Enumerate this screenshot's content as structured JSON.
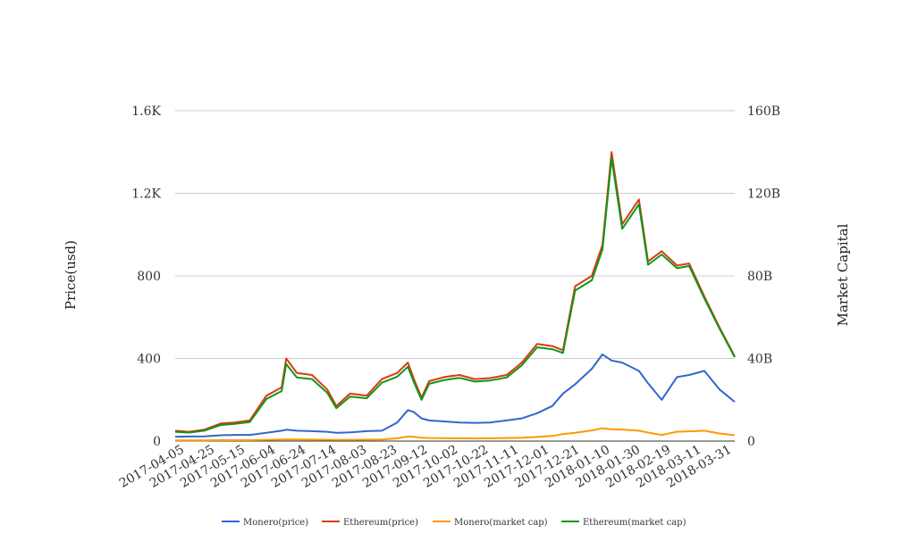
{
  "chart_data": {
    "type": "line",
    "title": "",
    "ylabel_left": "Price(usd)",
    "ylabel_right": "Market Capital",
    "y_left_ticks": [
      "0",
      "400",
      "800",
      "1.2K",
      "1.6K"
    ],
    "y_right_ticks": [
      "0",
      "40B",
      "80B",
      "120B",
      "160B"
    ],
    "ylim_left": [
      0,
      1600
    ],
    "ylim_right": [
      0,
      160000000000
    ],
    "grid": true,
    "legend_position": "bottom",
    "x_tick_labels": [
      "2017-04-05",
      "2017-04-25",
      "2017-05-15",
      "2017-06-04",
      "2017-06-24",
      "2017-07-14",
      "2017-08-03",
      "2017-08-23",
      "2017-09-12",
      "2017-10-02",
      "2017-10-22",
      "2017-11-11",
      "2017-12-01",
      "2017-12-21",
      "2018-01-10",
      "2018-01-30",
      "2018-02-19",
      "2018-03-11",
      "2018-03-31"
    ],
    "x": [
      "2017-04-01",
      "2017-04-10",
      "2017-04-20",
      "2017-05-01",
      "2017-05-10",
      "2017-05-20",
      "2017-05-31",
      "2017-06-10",
      "2017-06-13",
      "2017-06-20",
      "2017-06-30",
      "2017-07-10",
      "2017-07-16",
      "2017-07-25",
      "2017-08-05",
      "2017-08-15",
      "2017-08-25",
      "2017-09-01",
      "2017-09-05",
      "2017-09-10",
      "2017-09-15",
      "2017-09-25",
      "2017-10-05",
      "2017-10-15",
      "2017-10-25",
      "2017-11-05",
      "2017-11-15",
      "2017-11-25",
      "2017-12-05",
      "2017-12-12",
      "2017-12-20",
      "2017-12-31",
      "2018-01-07",
      "2018-01-13",
      "2018-01-20",
      "2018-01-31",
      "2018-02-06",
      "2018-02-15",
      "2018-02-25",
      "2018-03-05",
      "2018-03-15",
      "2018-03-25",
      "2018-04-04"
    ],
    "series": [
      {
        "name": "Monero(price)",
        "axis": "left",
        "color": "#3366cc",
        "values": [
          21,
          22,
          23,
          28,
          30,
          30,
          40,
          50,
          55,
          50,
          48,
          45,
          40,
          42,
          48,
          50,
          90,
          150,
          140,
          110,
          100,
          95,
          90,
          88,
          90,
          100,
          110,
          135,
          170,
          230,
          275,
          350,
          420,
          390,
          380,
          340,
          280,
          200,
          310,
          320,
          340,
          250,
          190
        ]
      },
      {
        "name": "Ethereum(price)",
        "axis": "left",
        "color": "#dc3912",
        "values": [
          50,
          45,
          55,
          85,
          90,
          100,
          220,
          260,
          400,
          330,
          320,
          250,
          170,
          230,
          220,
          300,
          330,
          380,
          300,
          210,
          290,
          310,
          320,
          300,
          305,
          320,
          380,
          470,
          460,
          440,
          750,
          800,
          950,
          1400,
          1050,
          1170,
          870,
          920,
          850,
          860,
          700,
          550,
          410
        ]
      },
      {
        "name": "Monero(market cap)",
        "axis": "right",
        "color": "#ff9900",
        "values": [
          300000000,
          320000000,
          340000000,
          420000000,
          440000000,
          440000000,
          590000000,
          730000000,
          800000000,
          730000000,
          700000000,
          660000000,
          590000000,
          610000000,
          700000000,
          730000000,
          1320000000,
          2200000000,
          2050000000,
          1610000000,
          1470000000,
          1390000000,
          1320000000,
          1290000000,
          1320000000,
          1470000000,
          1610000000,
          1980000000,
          2500000000,
          3380000000,
          4040000000,
          5150000000,
          6180000000,
          5740000000,
          5590000000,
          5000000000,
          4120000000,
          2940000000,
          4560000000,
          4710000000,
          5000000000,
          3680000000,
          2790000000
        ]
      },
      {
        "name": "Ethereum(market cap)",
        "axis": "right",
        "color": "#109618",
        "values": [
          4500000000,
          4100000000,
          5000000000,
          7800000000,
          8300000000,
          9200000000,
          20400000000,
          24200000000,
          37300000000,
          30800000000,
          30000000000,
          23400000000,
          15900000000,
          21600000000,
          20700000000,
          28300000000,
          31200000000,
          36000000000,
          28500000000,
          20000000000,
          27700000000,
          29600000000,
          30600000000,
          28800000000,
          29300000000,
          30800000000,
          36700000000,
          45400000000,
          44500000000,
          42700000000,
          72900000000,
          77900000000,
          92700000000,
          137000000000,
          102800000000,
          114700000000,
          85400000000,
          90400000000,
          83700000000,
          84800000000,
          69100000000,
          54400000000,
          40600000000
        ]
      }
    ]
  }
}
